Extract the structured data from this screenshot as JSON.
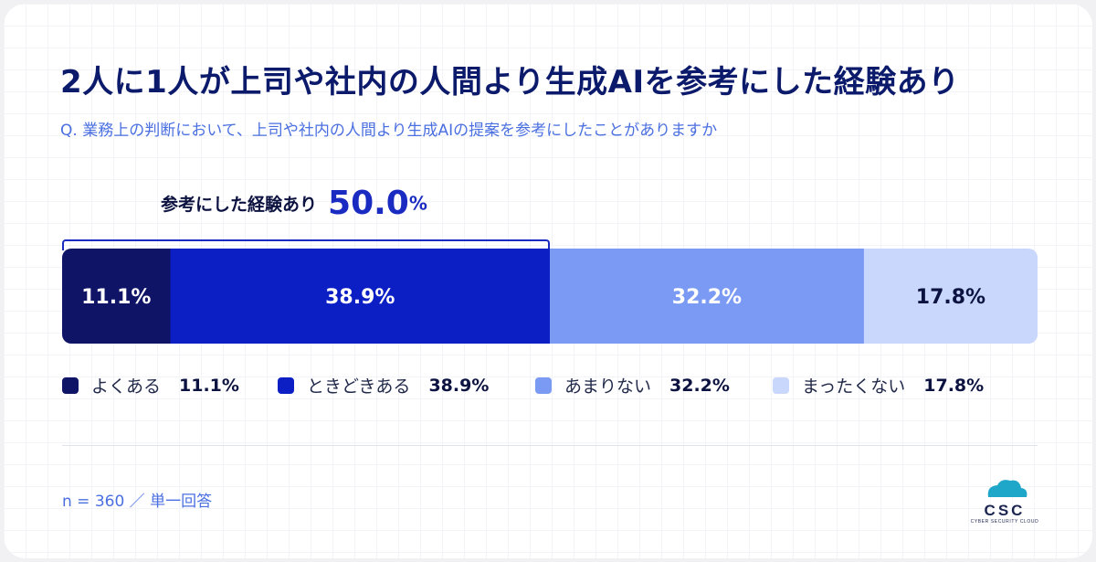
{
  "header": {
    "title": "2人に1人が上司や社内の人間より生成AIを参考にした経験あり",
    "question": "Q. 業務上の判断において、上司や社内の人間より生成AIの提案を参考にしたことがありますか"
  },
  "bracket": {
    "label": "参考にした経験あり",
    "value": "50.0",
    "unit": "%"
  },
  "chart_data": {
    "type": "bar",
    "orientation": "horizontal-stacked-100",
    "categories": [
      "よくある",
      "ときどきある",
      "あまりない",
      "まったくない"
    ],
    "values": [
      11.1,
      38.9,
      32.2,
      17.8
    ],
    "value_labels": [
      "11.1%",
      "38.9%",
      "32.2%",
      "17.8%"
    ],
    "colors": [
      "#0f1466",
      "#0b1fc4",
      "#7a9af3",
      "#c8d7fb"
    ],
    "label_colors": [
      "#ffffff",
      "#ffffff",
      "#ffffff",
      "#0d1340"
    ],
    "legend_placement": "bottom",
    "grid": false
  },
  "legend": [
    {
      "label": "よくある",
      "value": "11.1%"
    },
    {
      "label": "ときどきある",
      "value": "38.9%"
    },
    {
      "label": "あまりない",
      "value": "32.2%"
    },
    {
      "label": "まったくない",
      "value": "17.8%"
    }
  ],
  "footer": {
    "note": "n = 360 ／ 単一回答",
    "logo_text": "CSC",
    "logo_tagline": "CYBER SECURITY CLOUD"
  }
}
